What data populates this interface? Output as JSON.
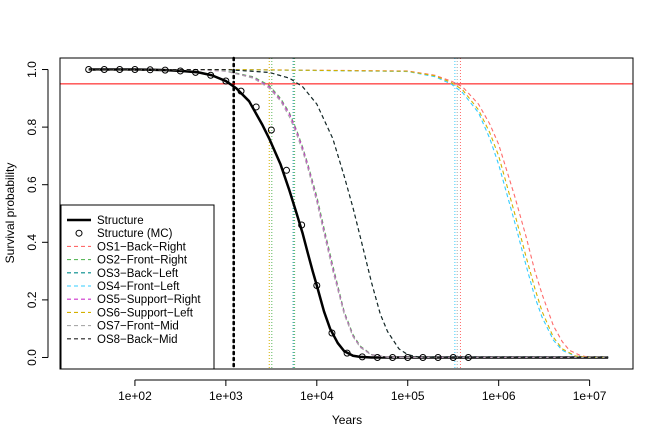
{
  "chart_data": {
    "type": "line",
    "xlabel": "Years",
    "ylabel": "Survival probability",
    "x_scale": "log",
    "xlim": [
      15,
      30000000
    ],
    "ylim": [
      -0.04,
      1.04
    ],
    "x_ticks": [
      100,
      1000,
      10000,
      100000,
      1000000,
      10000000
    ],
    "x_tick_labels": [
      "1e+02",
      "1e+03",
      "1e+04",
      "1e+05",
      "1e+06",
      "1e+07"
    ],
    "y_ticks": [
      0.0,
      0.2,
      0.4,
      0.6,
      0.8,
      1.0
    ],
    "y_tick_labels": [
      "0.0",
      "0.2",
      "0.4",
      "0.6",
      "0.8",
      "1.0"
    ],
    "threshold_line": {
      "y": 0.95,
      "color": "#ff0000"
    },
    "legend_position": "bottom-left",
    "series": [
      {
        "name": "Structure",
        "style": "solid",
        "color": "#000000",
        "x": [
          31,
          45,
          70,
          100,
          150,
          220,
          330,
          500,
          700,
          1000,
          1300,
          1800,
          2500,
          3000,
          4000,
          5000,
          6000,
          7000,
          8000,
          9000,
          10000,
          12000,
          14000,
          17000,
          20000,
          25000,
          30000,
          40000,
          60000,
          100000,
          300000,
          1000000,
          16000000
        ],
        "y": [
          1.0,
          1.0,
          1.0,
          1.0,
          0.999,
          0.998,
          0.995,
          0.99,
          0.98,
          0.96,
          0.935,
          0.89,
          0.81,
          0.76,
          0.67,
          0.58,
          0.5,
          0.43,
          0.36,
          0.3,
          0.25,
          0.16,
          0.1,
          0.05,
          0.022,
          0.006,
          0.002,
          0.0,
          0.0,
          0.0,
          0.0,
          0.0,
          0.0
        ]
      },
      {
        "name": "Structure (MC)",
        "style": "points",
        "color": "#000000",
        "x": [
          31,
          46,
          68,
          100,
          147,
          215,
          316,
          464,
          681,
          1000,
          1468,
          2154,
          3162,
          4642,
          6813,
          10000,
          14678,
          21544,
          31623,
          46416,
          68129,
          100000,
          146780,
          215440,
          316230,
          464160
        ],
        "y": [
          1.0,
          1.0,
          1.0,
          1.0,
          0.999,
          0.998,
          0.995,
          0.99,
          0.98,
          0.96,
          0.925,
          0.87,
          0.79,
          0.65,
          0.46,
          0.25,
          0.085,
          0.015,
          0.002,
          0.0,
          0.0,
          0.0,
          0.0,
          0.0,
          0.0,
          0.0
        ]
      },
      {
        "name": "OS1−Back−Right",
        "style": "dashed",
        "color": "#ff6b6b",
        "x": [
          31,
          1000,
          100000,
          200000,
          300000,
          400000,
          600000,
          800000,
          1000000,
          1500000,
          2000000,
          2500000,
          3000000,
          4000000,
          5000000,
          6000000,
          8000000,
          10000000,
          16000000
        ],
        "y": [
          1.0,
          1.0,
          0.995,
          0.98,
          0.96,
          0.94,
          0.88,
          0.81,
          0.74,
          0.56,
          0.42,
          0.3,
          0.22,
          0.11,
          0.055,
          0.025,
          0.006,
          0.001,
          0.0
        ]
      },
      {
        "name": "OS2−Front−Right",
        "style": "dashed",
        "color": "#5cb85c",
        "x": [
          31,
          500,
          1000,
          2000,
          3000,
          4000,
          5000,
          6000,
          7000,
          8000,
          10000,
          12000,
          15000,
          20000,
          25000,
          30000,
          40000,
          60000,
          100000,
          16000000
        ],
        "y": [
          1.0,
          1.0,
          0.995,
          0.975,
          0.945,
          0.9,
          0.85,
          0.79,
          0.73,
          0.67,
          0.56,
          0.45,
          0.32,
          0.16,
          0.08,
          0.04,
          0.01,
          0.001,
          0.0,
          0.0
        ]
      },
      {
        "name": "OS3−Back−Left",
        "style": "dashed",
        "color": "#008b8b",
        "x": [
          31,
          1000,
          3000,
          5000,
          7000,
          10000,
          15000,
          20000,
          25000,
          30000,
          40000,
          50000,
          60000,
          80000,
          100000,
          130000,
          200000,
          16000000
        ],
        "y": [
          1.0,
          1.0,
          0.99,
          0.97,
          0.94,
          0.88,
          0.76,
          0.63,
          0.52,
          0.42,
          0.26,
          0.15,
          0.09,
          0.03,
          0.01,
          0.002,
          0.0,
          0.0
        ]
      },
      {
        "name": "OS4−Front−Left",
        "style": "dashed",
        "color": "#33ccff",
        "x": [
          31,
          1000,
          100000,
          200000,
          300000,
          400000,
          600000,
          800000,
          1000000,
          1500000,
          2000000,
          2500000,
          3000000,
          4000000,
          5000000,
          7000000,
          10000000,
          16000000
        ],
        "y": [
          1.0,
          1.0,
          0.993,
          0.975,
          0.95,
          0.92,
          0.85,
          0.76,
          0.67,
          0.47,
          0.32,
          0.21,
          0.14,
          0.06,
          0.025,
          0.004,
          0.0,
          0.0
        ]
      },
      {
        "name": "OS5−Support−Right",
        "style": "dashed",
        "color": "#cc33cc",
        "x": [
          31,
          500,
          1000,
          2000,
          3000,
          4000,
          5000,
          6000,
          7000,
          8000,
          10000,
          12000,
          15000,
          20000,
          25000,
          30000,
          40000,
          60000,
          100000,
          16000000
        ],
        "y": [
          1.0,
          1.0,
          0.994,
          0.972,
          0.94,
          0.895,
          0.845,
          0.785,
          0.725,
          0.665,
          0.55,
          0.44,
          0.31,
          0.155,
          0.075,
          0.037,
          0.009,
          0.001,
          0.0,
          0.0
        ]
      },
      {
        "name": "OS6−Support−Left",
        "style": "dashed",
        "color": "#d4b000",
        "x": [
          31,
          1000,
          100000,
          200000,
          300000,
          400000,
          600000,
          800000,
          1000000,
          1500000,
          2000000,
          2500000,
          3000000,
          4000000,
          5000000,
          7000000,
          10000000,
          16000000
        ],
        "y": [
          1.0,
          1.0,
          0.994,
          0.978,
          0.955,
          0.93,
          0.86,
          0.78,
          0.7,
          0.5,
          0.35,
          0.24,
          0.16,
          0.07,
          0.03,
          0.005,
          0.0,
          0.0
        ]
      },
      {
        "name": "OS7−Front−Mid",
        "style": "dashed",
        "color": "#aaaaaa",
        "x": [
          31,
          500,
          1000,
          2000,
          3000,
          4000,
          5000,
          6000,
          7000,
          8000,
          10000,
          12000,
          15000,
          20000,
          25000,
          30000,
          40000,
          60000,
          100000,
          16000000
        ],
        "y": [
          1.0,
          1.0,
          0.994,
          0.97,
          0.935,
          0.89,
          0.835,
          0.775,
          0.715,
          0.655,
          0.54,
          0.43,
          0.3,
          0.15,
          0.072,
          0.035,
          0.008,
          0.001,
          0.0,
          0.0
        ]
      },
      {
        "name": "OS8−Back−Mid",
        "style": "dashed",
        "color": "#222222",
        "x": [
          31,
          1000,
          3000,
          5000,
          7000,
          10000,
          15000,
          20000,
          25000,
          30000,
          40000,
          50000,
          60000,
          80000,
          100000,
          130000,
          200000,
          16000000
        ],
        "y": [
          1.0,
          1.0,
          0.99,
          0.97,
          0.94,
          0.88,
          0.76,
          0.63,
          0.52,
          0.42,
          0.26,
          0.15,
          0.09,
          0.03,
          0.01,
          0.002,
          0.0,
          0.0
        ]
      }
    ],
    "vertical_lines": [
      {
        "x": 1220,
        "color": "#000000",
        "style": "thick-dotted"
      },
      {
        "x": 3000,
        "color": "#d4b000",
        "style": "dotted"
      },
      {
        "x": 3200,
        "color": "#5cb85c",
        "style": "dotted"
      },
      {
        "x": 5500,
        "color": "#008b8b",
        "style": "dotted"
      },
      {
        "x": 5700,
        "color": "#5cb85c",
        "style": "dotted"
      },
      {
        "x": 330000,
        "color": "#33ccff",
        "style": "dotted"
      },
      {
        "x": 350000,
        "color": "#aaaaaa",
        "style": "dotted"
      },
      {
        "x": 380000,
        "color": "#ff6b6b",
        "style": "dotted"
      }
    ]
  }
}
